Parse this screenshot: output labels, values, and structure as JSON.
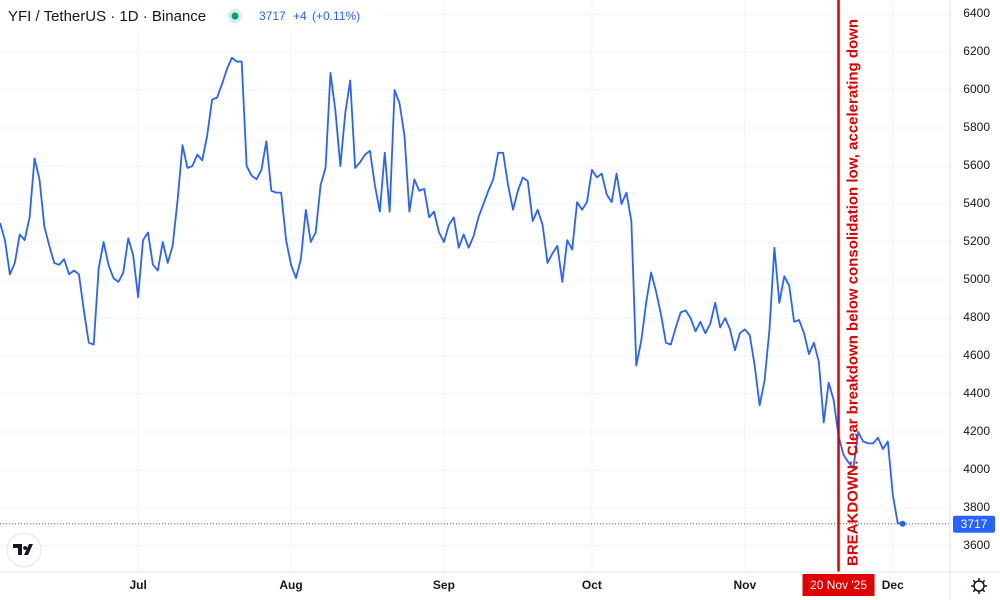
{
  "chart_data": {
    "type": "line",
    "title": "YFI / TetherUS · 1D · Binance",
    "change": "+4",
    "change_pct": "(+0.11%)",
    "color": "#2962ff",
    "values": [
      5300,
      5210,
      5030,
      5090,
      5240,
      5210,
      5330,
      5640,
      5530,
      5280,
      5180,
      5090,
      5080,
      5110,
      5030,
      5050,
      5030,
      4840,
      4670,
      4660,
      5060,
      5200,
      5080,
      5010,
      4990,
      5040,
      5220,
      5130,
      4910,
      5210,
      5250,
      5080,
      5050,
      5200,
      5090,
      5180,
      5420,
      5710,
      5590,
      5600,
      5660,
      5630,
      5760,
      5950,
      5960,
      6030,
      6110,
      6170,
      6150,
      6150,
      5600,
      5550,
      5530,
      5580,
      5730,
      5470,
      5460,
      5460,
      5210,
      5080,
      5010,
      5110,
      5370,
      5200,
      5250,
      5500,
      5590,
      6090,
      5890,
      5600,
      5880,
      6050,
      5590,
      5620,
      5660,
      5680,
      5500,
      5360,
      5670,
      5360,
      6000,
      5930,
      5760,
      5360,
      5530,
      5470,
      5480,
      5330,
      5360,
      5250,
      5200,
      5290,
      5330,
      5170,
      5240,
      5170,
      5230,
      5330,
      5400,
      5470,
      5530,
      5670,
      5670,
      5500,
      5370,
      5470,
      5540,
      5520,
      5310,
      5370,
      5290,
      5090,
      5140,
      5180,
      4990,
      5210,
      5160,
      5410,
      5370,
      5410,
      5580,
      5540,
      5560,
      5450,
      5410,
      5560,
      5400,
      5460,
      5310,
      4550,
      4680,
      4880,
      5040,
      4940,
      4820,
      4670,
      4660,
      4750,
      4830,
      4840,
      4800,
      4730,
      4780,
      4720,
      4770,
      4880,
      4750,
      4800,
      4740,
      4630,
      4720,
      4740,
      4710,
      4550,
      4340,
      4470,
      4740,
      5170,
      4880,
      5020,
      4970,
      4780,
      4790,
      4720,
      4610,
      4670,
      4570,
      4250,
      4460,
      4370,
      4180,
      4080,
      4040,
      4010,
      4200,
      4150,
      4140,
      4140,
      4170,
      4110,
      4150,
      3870,
      3720,
      3717
    ],
    "xlim": [
      0,
      192.6
    ],
    "xticks": [
      {
        "value": 28,
        "label": "Jul"
      },
      {
        "value": 59,
        "label": "Aug"
      },
      {
        "value": 90,
        "label": "Sep"
      },
      {
        "value": 120,
        "label": "Oct"
      },
      {
        "value": 151,
        "label": "Nov"
      },
      {
        "value": 181,
        "label": "Dec"
      }
    ],
    "ylim": [
      3463,
      6474
    ],
    "yticks": [
      3600,
      3800,
      4000,
      4200,
      4400,
      4600,
      4800,
      5000,
      5200,
      5400,
      5600,
      5800,
      6000,
      6200,
      6400
    ],
    "grid": true,
    "annotation": {
      "x": 170,
      "label": "20 Nov '25",
      "text": "BREAKDOWN: Clear breakdown below consolidation low, accelerating down",
      "color": "#e00000"
    }
  }
}
